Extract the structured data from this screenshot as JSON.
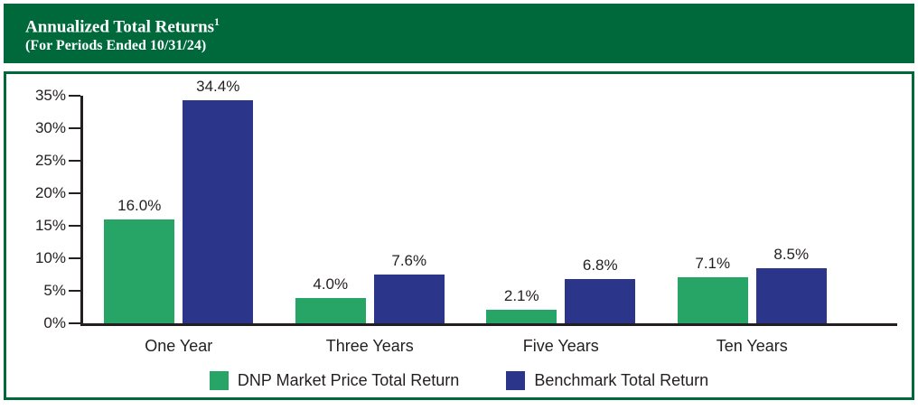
{
  "header": {
    "title": "Annualized Total Returns",
    "superscript": "1",
    "subtitle": "(For Periods Ended 10/31/24)"
  },
  "chart_data": {
    "type": "bar",
    "title": "Annualized Total Returns (For Periods Ended 10/31/24)",
    "categories": [
      "One Year",
      "Three Years",
      "Five Years",
      "Ten Years"
    ],
    "series": [
      {
        "name": "DNP Market Price Total Return",
        "color": "#27a567",
        "values": [
          16.0,
          4.0,
          2.1,
          7.1
        ]
      },
      {
        "name": "Benchmark Total Return",
        "color": "#2b3589",
        "values": [
          34.4,
          7.6,
          6.8,
          8.5
        ]
      }
    ],
    "value_labels": [
      [
        "16.0%",
        "4.0%",
        "2.1%",
        "7.1%"
      ],
      [
        "34.4%",
        "7.6%",
        "6.8%",
        "8.5%"
      ]
    ],
    "xlabel": "",
    "ylabel": "",
    "ylim": [
      0,
      35
    ],
    "ytick_step": 5,
    "ytick_labels": [
      "0%",
      "5%",
      "10%",
      "15%",
      "20%",
      "25%",
      "30%",
      "35%"
    ],
    "grid": false,
    "legend_position": "bottom"
  },
  "colors": {
    "header_bg": "#00693c",
    "panel_border": "#00693c",
    "axis": "#231f20",
    "text": "#231f20"
  }
}
